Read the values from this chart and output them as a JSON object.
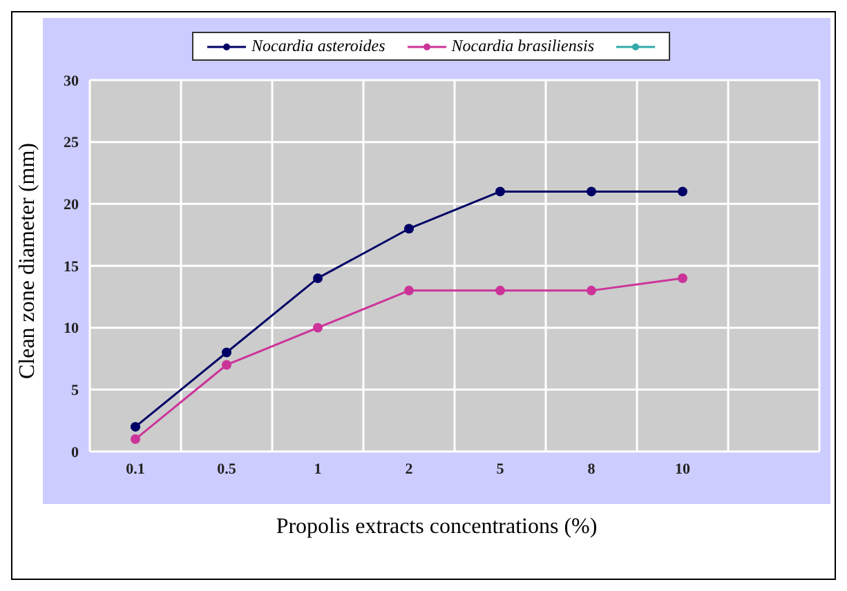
{
  "chart_data": {
    "type": "line",
    "xlabel": "Propolis extracts concentrations (%)",
    "ylabel": "Clean zone diameter (mm)",
    "categories": [
      "0.1",
      "0.5",
      "1",
      "2",
      "5",
      "8",
      "10",
      null
    ],
    "series": [
      {
        "name": "Nocardia asteroides",
        "color": "#000066",
        "values": [
          2,
          8,
          14,
          18,
          21,
          21,
          21,
          null
        ]
      },
      {
        "name": "Nocardia brasiliensis",
        "color": "#cc3399",
        "values": [
          1,
          7,
          10,
          13,
          13,
          13,
          14,
          null
        ]
      },
      {
        "color": "#33aaaa",
        "values": [
          null,
          null,
          null,
          null,
          null,
          null,
          null,
          null
        ]
      }
    ],
    "ylim": [
      0,
      30
    ],
    "yticks": [
      0,
      5,
      10,
      15,
      20,
      25,
      30
    ],
    "grid": true,
    "legend": "top",
    "marker": "circle",
    "line_style": "solid"
  }
}
